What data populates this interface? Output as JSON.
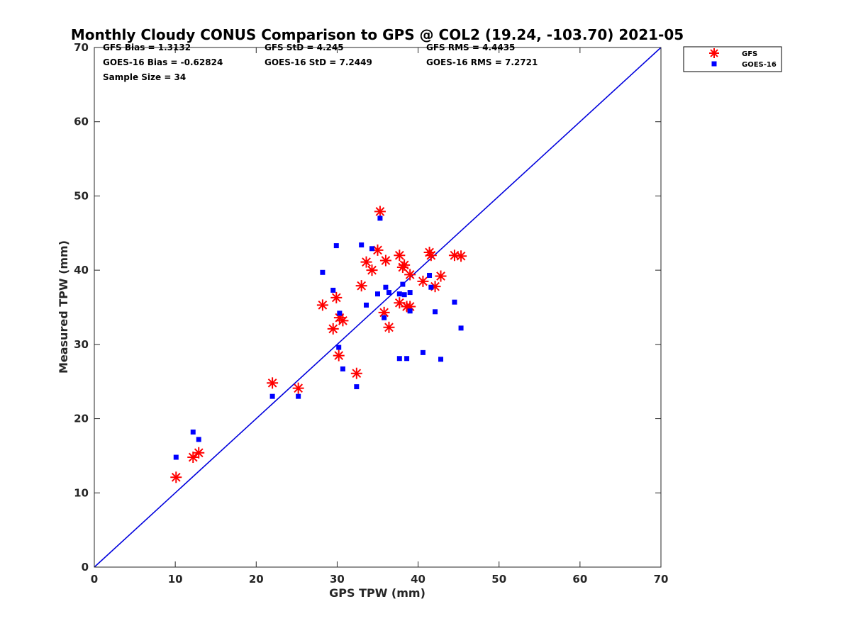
{
  "chart_data": {
    "type": "scatter",
    "title": "Monthly Cloudy CONUS Comparison to GPS @ COL2 (19.24, -103.70) 2021-05",
    "xlabel": "GPS TPW (mm)",
    "ylabel": "Measured TPW (mm)",
    "xlim": [
      0,
      70
    ],
    "ylim": [
      0,
      70
    ],
    "xticks": [
      0,
      10,
      20,
      30,
      40,
      50,
      60,
      70
    ],
    "yticks": [
      0,
      10,
      20,
      30,
      40,
      50,
      60,
      70
    ],
    "grid": false,
    "legend_position": "top-right",
    "reference_line": {
      "name": "one-to-one",
      "x": [
        0,
        70
      ],
      "y": [
        0,
        70
      ],
      "color": "#0000dd"
    },
    "stats": {
      "gfs_bias": "GFS Bias = 1.3132",
      "gfs_std": "GFS StD = 4.245",
      "gfs_rms": "GFS RMS = 4.4435",
      "goes_bias": "GOES-16 Bias = -0.62824",
      "goes_std": "GOES-16 StD = 7.2449",
      "goes_rms": "GOES-16 RMS = 7.2721",
      "sample_size": "Sample Size = 34"
    },
    "series": [
      {
        "name": "GFS",
        "marker": "asterisk",
        "color": "#ff0000",
        "points": [
          [
            10.1,
            12.1
          ],
          [
            12.2,
            14.8
          ],
          [
            12.9,
            15.4
          ],
          [
            22.0,
            24.8
          ],
          [
            25.2,
            24.1
          ],
          [
            28.2,
            35.3
          ],
          [
            29.5,
            32.1
          ],
          [
            29.9,
            36.3
          ],
          [
            30.2,
            28.5
          ],
          [
            30.3,
            33.6
          ],
          [
            30.7,
            33.2
          ],
          [
            32.4,
            26.1
          ],
          [
            33.0,
            37.9
          ],
          [
            33.6,
            41.1
          ],
          [
            34.3,
            40.0
          ],
          [
            35.0,
            42.7
          ],
          [
            35.3,
            47.9
          ],
          [
            35.8,
            34.3
          ],
          [
            36.0,
            41.3
          ],
          [
            36.4,
            32.3
          ],
          [
            37.7,
            42.0
          ],
          [
            37.7,
            35.6
          ],
          [
            38.1,
            40.4
          ],
          [
            38.3,
            40.7
          ],
          [
            38.6,
            35.1
          ],
          [
            39.0,
            39.4
          ],
          [
            39.0,
            35.1
          ],
          [
            40.6,
            38.5
          ],
          [
            41.4,
            42.4
          ],
          [
            41.6,
            42.0
          ],
          [
            42.1,
            37.8
          ],
          [
            42.8,
            39.2
          ],
          [
            44.5,
            42.0
          ],
          [
            45.3,
            41.9
          ]
        ]
      },
      {
        "name": "GOES-16",
        "marker": "square",
        "color": "#0000ff",
        "points": [
          [
            10.1,
            14.8
          ],
          [
            12.2,
            18.2
          ],
          [
            12.9,
            17.2
          ],
          [
            22.0,
            23.0
          ],
          [
            25.2,
            23.0
          ],
          [
            28.2,
            39.7
          ],
          [
            29.5,
            37.3
          ],
          [
            29.9,
            43.3
          ],
          [
            30.2,
            29.6
          ],
          [
            30.3,
            34.2
          ],
          [
            30.7,
            26.7
          ],
          [
            32.4,
            24.3
          ],
          [
            33.0,
            43.4
          ],
          [
            33.6,
            35.3
          ],
          [
            34.3,
            42.9
          ],
          [
            35.0,
            36.8
          ],
          [
            35.3,
            47.0
          ],
          [
            35.8,
            33.6
          ],
          [
            36.0,
            37.7
          ],
          [
            36.4,
            37.0
          ],
          [
            37.7,
            36.8
          ],
          [
            37.7,
            28.1
          ],
          [
            38.1,
            38.1
          ],
          [
            38.3,
            36.7
          ],
          [
            38.6,
            28.1
          ],
          [
            39.0,
            37.0
          ],
          [
            39.0,
            34.5
          ],
          [
            40.6,
            28.9
          ],
          [
            41.4,
            39.3
          ],
          [
            41.6,
            37.7
          ],
          [
            42.1,
            34.4
          ],
          [
            42.8,
            28.0
          ],
          [
            44.5,
            35.7
          ],
          [
            45.3,
            32.2
          ]
        ]
      }
    ]
  }
}
